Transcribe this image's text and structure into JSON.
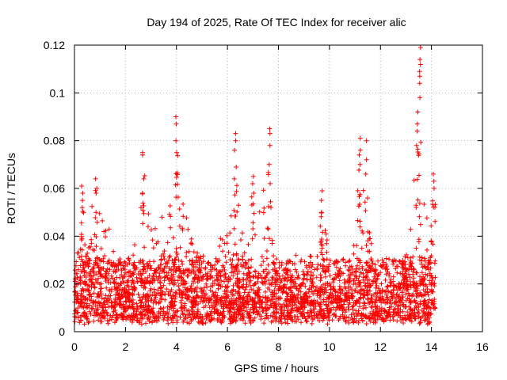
{
  "chart_data": {
    "type": "scatter",
    "title": "Day 194 of 2025, Rate Of TEC Index for receiver alic",
    "xlabel": "GPS time / hours",
    "ylabel": "ROTI / TECUs",
    "xlim": [
      0,
      16
    ],
    "ylim": [
      0,
      0.12
    ],
    "xticks": [
      0,
      2,
      4,
      6,
      8,
      10,
      12,
      14,
      16
    ],
    "xtick_labels": [
      "0",
      "2",
      "4",
      "6",
      "8",
      "10",
      "12",
      "14",
      "16"
    ],
    "yticks": [
      0,
      0.02,
      0.04,
      0.06,
      0.08,
      0.1,
      0.12
    ],
    "ytick_labels": [
      "0",
      "0.02",
      "0.04",
      "0.06",
      "0.08",
      "0.1",
      "0.12"
    ],
    "grid": true,
    "marker": "+",
    "marker_color": "#ff0000",
    "time_range": [
      0.0,
      14.15
    ],
    "baseline_band": [
      0.005,
      0.03
    ],
    "envelope": [
      [
        0.0,
        0.025
      ],
      [
        0.2,
        0.045
      ],
      [
        0.3,
        0.062
      ],
      [
        0.5,
        0.035
      ],
      [
        0.8,
        0.064
      ],
      [
        1.0,
        0.055
      ],
      [
        1.3,
        0.046
      ],
      [
        1.6,
        0.03
      ],
      [
        2.0,
        0.03
      ],
      [
        2.4,
        0.04
      ],
      [
        2.6,
        0.06
      ],
      [
        2.75,
        0.075
      ],
      [
        3.0,
        0.045
      ],
      [
        3.3,
        0.05
      ],
      [
        3.6,
        0.05
      ],
      [
        3.9,
        0.06
      ],
      [
        4.0,
        0.09
      ],
      [
        4.2,
        0.06
      ],
      [
        4.5,
        0.042
      ],
      [
        5.0,
        0.03
      ],
      [
        5.5,
        0.03
      ],
      [
        5.8,
        0.042
      ],
      [
        6.1,
        0.045
      ],
      [
        6.3,
        0.083
      ],
      [
        6.5,
        0.05
      ],
      [
        6.8,
        0.045
      ],
      [
        7.0,
        0.065
      ],
      [
        7.3,
        0.055
      ],
      [
        7.6,
        0.085
      ],
      [
        7.8,
        0.06
      ],
      [
        8.0,
        0.04
      ],
      [
        8.5,
        0.035
      ],
      [
        9.0,
        0.03
      ],
      [
        9.5,
        0.035
      ],
      [
        9.7,
        0.059
      ],
      [
        10.0,
        0.035
      ],
      [
        10.5,
        0.03
      ],
      [
        11.0,
        0.04
      ],
      [
        11.2,
        0.081
      ],
      [
        11.4,
        0.08
      ],
      [
        11.7,
        0.04
      ],
      [
        12.0,
        0.028
      ],
      [
        12.5,
        0.03
      ],
      [
        12.9,
        0.03
      ],
      [
        13.1,
        0.045
      ],
      [
        13.3,
        0.065
      ],
      [
        13.45,
        0.095
      ],
      [
        13.55,
        0.119
      ],
      [
        13.7,
        0.07
      ],
      [
        13.9,
        0.05
      ],
      [
        14.1,
        0.066
      ],
      [
        14.15,
        0.04
      ]
    ],
    "spikes": [
      {
        "x": 0.3,
        "values": [
          0.052,
          0.055,
          0.058,
          0.061
        ]
      },
      {
        "x": 0.85,
        "values": [
          0.05,
          0.058,
          0.06,
          0.064
        ]
      },
      {
        "x": 2.7,
        "values": [
          0.058,
          0.064,
          0.074,
          0.075
        ]
      },
      {
        "x": 4.0,
        "values": [
          0.075,
          0.08,
          0.087,
          0.09
        ]
      },
      {
        "x": 6.3,
        "values": [
          0.064,
          0.076,
          0.08,
          0.083
        ]
      },
      {
        "x": 7.0,
        "values": [
          0.058,
          0.062,
          0.065
        ]
      },
      {
        "x": 7.65,
        "values": [
          0.07,
          0.078,
          0.083,
          0.085
        ]
      },
      {
        "x": 9.7,
        "values": [
          0.05,
          0.055,
          0.059
        ]
      },
      {
        "x": 11.2,
        "values": [
          0.07,
          0.076,
          0.081
        ]
      },
      {
        "x": 11.45,
        "values": [
          0.066,
          0.072,
          0.08
        ]
      },
      {
        "x": 13.45,
        "values": [
          0.084,
          0.087,
          0.092
        ]
      },
      {
        "x": 13.55,
        "values": [
          0.098,
          0.104,
          0.107,
          0.109,
          0.114,
          0.119
        ]
      },
      {
        "x": 14.1,
        "values": [
          0.06,
          0.063,
          0.066
        ]
      }
    ]
  }
}
